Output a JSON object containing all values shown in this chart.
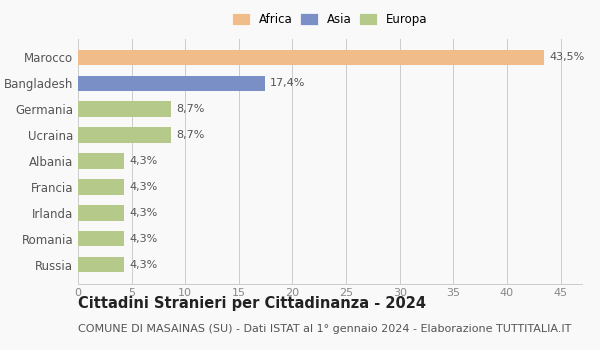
{
  "categories": [
    "Russia",
    "Romania",
    "Irlanda",
    "Francia",
    "Albania",
    "Ucraina",
    "Germania",
    "Bangladesh",
    "Marocco"
  ],
  "values": [
    4.3,
    4.3,
    4.3,
    4.3,
    4.3,
    8.7,
    8.7,
    17.4,
    43.5
  ],
  "colors": [
    "#b5c98a",
    "#b5c98a",
    "#b5c98a",
    "#b5c98a",
    "#b5c98a",
    "#b5c98a",
    "#b5c98a",
    "#7b8fc7",
    "#f0bc8a"
  ],
  "labels": [
    "4,3%",
    "4,3%",
    "4,3%",
    "4,3%",
    "4,3%",
    "8,7%",
    "8,7%",
    "17,4%",
    "43,5%"
  ],
  "legend": [
    {
      "label": "Africa",
      "color": "#f0bc8a"
    },
    {
      "label": "Asia",
      "color": "#7b8fc7"
    },
    {
      "label": "Europa",
      "color": "#b5c98a"
    }
  ],
  "xlim": [
    0,
    47
  ],
  "xticks": [
    0,
    5,
    10,
    15,
    20,
    25,
    30,
    35,
    40,
    45
  ],
  "title": "Cittadini Stranieri per Cittadinanza - 2024",
  "subtitle": "COMUNE DI MASAINAS (SU) - Dati ISTAT al 1° gennaio 2024 - Elaborazione TUTTITALIA.IT",
  "bg_color": "#f9f9f9",
  "bar_height": 0.6,
  "label_fontsize": 8,
  "title_fontsize": 10.5,
  "subtitle_fontsize": 8,
  "ytick_fontsize": 8.5,
  "xtick_fontsize": 8
}
